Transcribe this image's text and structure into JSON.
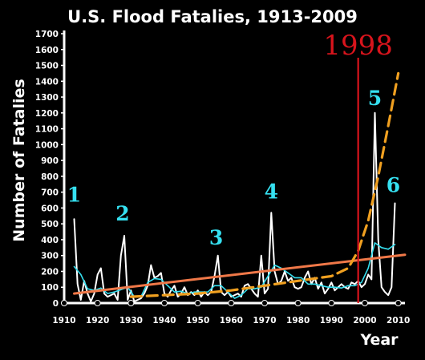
{
  "chart_data": {
    "type": "line",
    "title": "U.S. Flood Fatalies, 1913-2009",
    "xlabel": "Year",
    "ylabel": "Number of Fatalies",
    "xlim": [
      1910,
      2012
    ],
    "ylim": [
      0,
      1700
    ],
    "x_ticks": [
      "1910",
      "1920",
      "1930",
      "1940",
      "1950",
      "1960",
      "1970",
      "1980",
      "1990",
      "2000",
      "2010"
    ],
    "y_ticks": [
      "0",
      "100",
      "200",
      "300",
      "400",
      "500",
      "600",
      "700",
      "800",
      "900",
      "1000",
      "1100",
      "1200",
      "1300",
      "1400",
      "1500",
      "1600",
      "1700"
    ],
    "grid": false,
    "legend": "none",
    "vertical_marker": {
      "x": 1998,
      "label": "1998",
      "color": "#d8141c"
    },
    "annotations": [
      {
        "text": "1",
        "x": 1913,
        "y": 640
      },
      {
        "text": "2",
        "x": 1927.5,
        "y": 520
      },
      {
        "text": "3",
        "x": 1955.5,
        "y": 370
      },
      {
        "text": "4",
        "x": 1972,
        "y": 660
      },
      {
        "text": "5",
        "x": 2003,
        "y": 1250
      },
      {
        "text": "6",
        "x": 2008.5,
        "y": 700
      }
    ],
    "series": [
      {
        "style": "annual",
        "color": "#ffffff",
        "x": [
          1913,
          1914,
          1915,
          1916,
          1917,
          1918,
          1919,
          1920,
          1921,
          1922,
          1923,
          1924,
          1925,
          1926,
          1927,
          1928,
          1929,
          1930,
          1931,
          1932,
          1933,
          1934,
          1935,
          1936,
          1937,
          1938,
          1939,
          1940,
          1941,
          1942,
          1943,
          1944,
          1945,
          1946,
          1947,
          1948,
          1949,
          1950,
          1951,
          1952,
          1953,
          1954,
          1955,
          1956,
          1957,
          1958,
          1959,
          1960,
          1961,
          1962,
          1963,
          1964,
          1965,
          1966,
          1967,
          1968,
          1969,
          1970,
          1971,
          1972,
          1973,
          1974,
          1975,
          1976,
          1977,
          1978,
          1979,
          1980,
          1981,
          1982,
          1983,
          1984,
          1985,
          1986,
          1987,
          1988,
          1989,
          1990,
          1991,
          1992,
          1993,
          1994,
          1995,
          1996,
          1997,
          1998,
          1999,
          2000,
          2001,
          2002,
          2003,
          2004,
          2005,
          2006,
          2007,
          2008,
          2009
        ],
        "y": [
          530,
          120,
          20,
          140,
          60,
          10,
          60,
          180,
          220,
          60,
          40,
          50,
          60,
          20,
          300,
          425,
          20,
          80,
          10,
          20,
          30,
          60,
          110,
          240,
          160,
          170,
          190,
          60,
          40,
          80,
          110,
          40,
          60,
          100,
          50,
          70,
          50,
          80,
          40,
          70,
          50,
          70,
          170,
          300,
          70,
          50,
          70,
          40,
          50,
          60,
          40,
          110,
          120,
          90,
          60,
          40,
          300,
          60,
          90,
          570,
          200,
          120,
          140,
          200,
          140,
          160,
          100,
          90,
          100,
          160,
          200,
          120,
          160,
          90,
          130,
          60,
          90,
          130,
          80,
          100,
          120,
          100,
          90,
          130,
          120,
          140,
          100,
          120,
          180,
          150,
          1200,
          400,
          100,
          70,
          50,
          100,
          630
        ]
      },
      {
        "style": "moving-average",
        "color": "#35e0f0",
        "x": [
          1913,
          1915,
          1917,
          1919,
          1921,
          1923,
          1925,
          1927,
          1929,
          1931,
          1933,
          1935,
          1937,
          1939,
          1941,
          1943,
          1945,
          1947,
          1949,
          1951,
          1953,
          1955,
          1957,
          1959,
          1961,
          1963,
          1965,
          1967,
          1969,
          1971,
          1973,
          1975,
          1977,
          1979,
          1981,
          1983,
          1985,
          1987,
          1989,
          1991,
          1993,
          1995,
          1997,
          1999,
          2001,
          2003,
          2005,
          2007,
          2009
        ],
        "y": [
          230,
          180,
          90,
          80,
          95,
          60,
          70,
          85,
          100,
          40,
          40,
          130,
          155,
          150,
          110,
          70,
          75,
          60,
          70,
          70,
          70,
          110,
          110,
          70,
          30,
          50,
          90,
          90,
          100,
          170,
          240,
          220,
          190,
          160,
          160,
          120,
          120,
          110,
          100,
          100,
          95,
          110,
          110,
          130,
          220,
          380,
          350,
          340,
          370
        ]
      },
      {
        "style": "trend",
        "color": "#f07848",
        "x": [
          1913,
          2012
        ],
        "y": [
          60,
          305
        ]
      },
      {
        "style": "trend-dashed",
        "color": "#f0a020",
        "x": [
          1930,
          1940,
          1950,
          1960,
          1970,
          1980,
          1990,
          1995,
          1998,
          2001,
          2004,
          2007,
          2010
        ],
        "y": [
          40,
          50,
          60,
          80,
          110,
          140,
          170,
          220,
          330,
          520,
          800,
          1120,
          1450
        ]
      }
    ]
  }
}
